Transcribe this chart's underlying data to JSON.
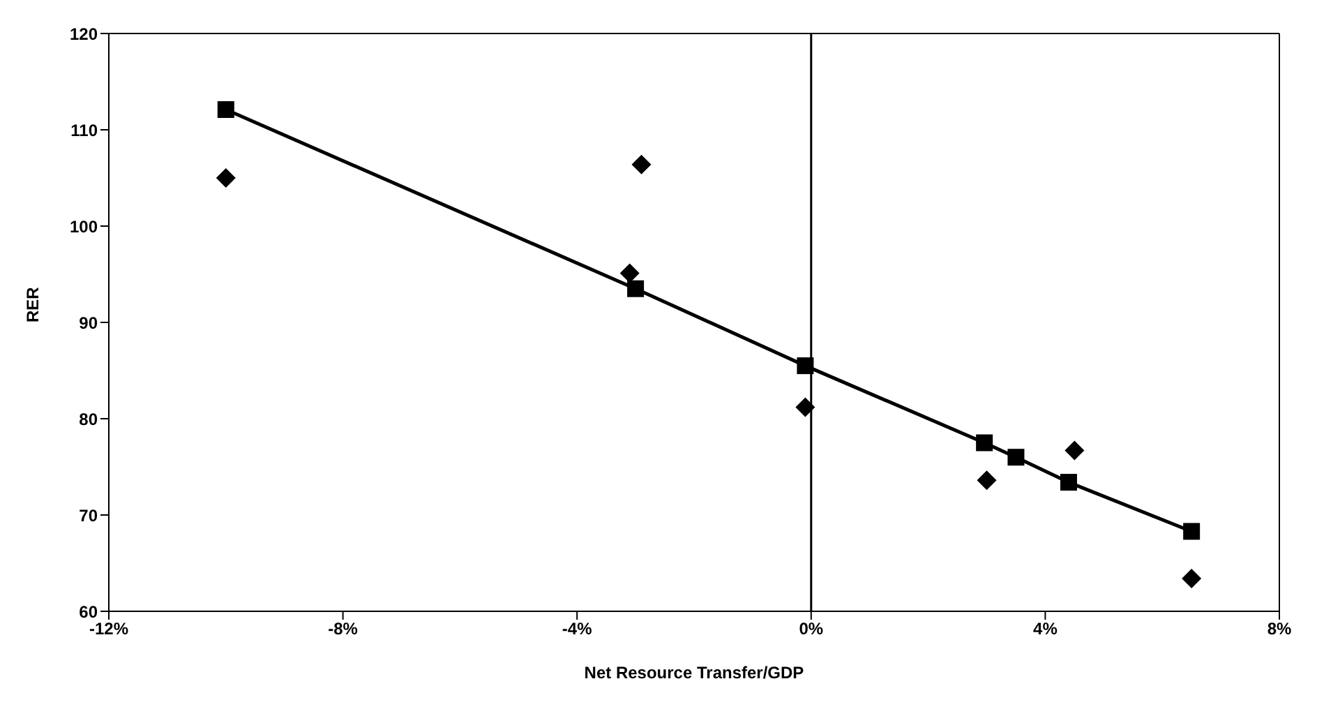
{
  "chart_data": {
    "type": "scatter",
    "xlabel": "Net Resource Transfer/GDP",
    "ylabel": "RER",
    "xlim": [
      -12,
      8
    ],
    "xticks": [
      {
        "value": -12,
        "label": "-12%"
      },
      {
        "value": -8,
        "label": "-8%"
      },
      {
        "value": -4,
        "label": "-4%"
      },
      {
        "value": 0,
        "label": "0%"
      },
      {
        "value": 4,
        "label": "4%"
      },
      {
        "value": 8,
        "label": "8%"
      }
    ],
    "ylim": [
      60,
      120
    ],
    "yticks": [
      60,
      70,
      80,
      90,
      100,
      110,
      120
    ],
    "ref_lines": [
      {
        "axis": "x",
        "value": 0,
        "color": "#000000"
      }
    ],
    "series": [
      {
        "marker": "diamond",
        "color": "#000000",
        "x": [
          -10.0,
          -2.9,
          -3.1,
          -0.1,
          3.0,
          3.5,
          4.5,
          6.5
        ],
        "values": [
          105.0,
          106.4,
          95.1,
          81.2,
          73.6,
          null,
          76.7,
          63.4
        ]
      },
      {
        "type": "line",
        "marker": "square",
        "line_style": "solid",
        "color": "#000000",
        "x": [
          -10.0,
          -3.0,
          -0.1,
          2.96,
          3.5,
          4.4,
          6.5
        ],
        "values": [
          112.1,
          93.5,
          85.5,
          77.5,
          76.0,
          73.4,
          68.3
        ]
      }
    ]
  }
}
